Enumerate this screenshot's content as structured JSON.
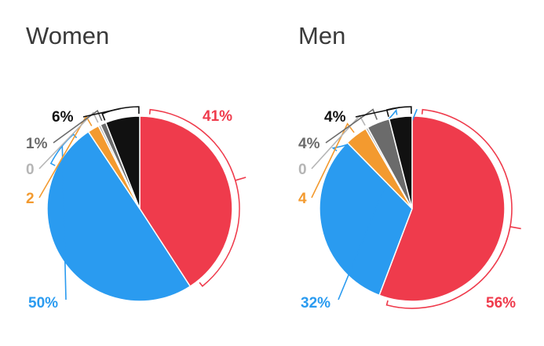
{
  "chart_data": [
    {
      "type": "pie",
      "title": "Women",
      "slices": [
        {
          "label": "41%",
          "value": 41,
          "color": "#ef3b4c"
        },
        {
          "label": "50%",
          "value": 50,
          "color": "#2a9bf0"
        },
        {
          "label": "2",
          "value": 2,
          "color": "#f39a2f"
        },
        {
          "label": "0",
          "value": 0.4,
          "color": "#b5b5b5"
        },
        {
          "label": "1%",
          "value": 1,
          "color": "#6b6b6b"
        },
        {
          "label": "6%",
          "value": 6,
          "color": "#111111"
        }
      ]
    },
    {
      "type": "pie",
      "title": "Men",
      "slices": [
        {
          "label": "56%",
          "value": 56,
          "color": "#ef3b4c"
        },
        {
          "label": "32%",
          "value": 32,
          "color": "#2a9bf0"
        },
        {
          "label": "4",
          "value": 4,
          "color": "#f39a2f"
        },
        {
          "label": "0",
          "value": 0.4,
          "color": "#b5b5b5"
        },
        {
          "label": "4%",
          "value": 4,
          "color": "#6b6b6b"
        },
        {
          "label": "4%",
          "value": 4,
          "color": "#111111"
        }
      ]
    }
  ]
}
